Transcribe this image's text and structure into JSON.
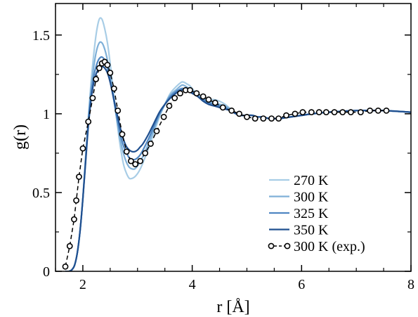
{
  "chart_data": {
    "type": "line",
    "xlabel": "r [Å]",
    "ylabel": "g(r)",
    "xlim": [
      1.5,
      8.0
    ],
    "ylim": [
      0,
      1.7
    ],
    "xticks": [
      2,
      4,
      6,
      8
    ],
    "xtick_labels": [
      "2",
      "4",
      "6",
      "8"
    ],
    "yticks": [
      0,
      0.5,
      1,
      1.5
    ],
    "ytick_labels": [
      "0",
      "0.5",
      "1",
      "1.5"
    ],
    "grid": false,
    "legend_position": "bottom-right",
    "series": [
      {
        "name": "270 K",
        "color": "#a8cde6",
        "style": "line",
        "x": [
          1.68,
          1.75,
          1.8,
          1.85,
          1.9,
          1.95,
          2.0,
          2.05,
          2.1,
          2.15,
          2.2,
          2.25,
          2.3,
          2.35,
          2.4,
          2.45,
          2.5,
          2.55,
          2.6,
          2.65,
          2.7,
          2.75,
          2.8,
          2.85,
          2.9,
          2.95,
          3.0,
          3.05,
          3.1,
          3.2,
          3.3,
          3.4,
          3.5,
          3.6,
          3.7,
          3.8,
          3.85,
          3.9,
          3.95,
          4.0,
          4.1,
          4.2,
          4.3,
          4.4,
          4.5,
          4.6,
          4.7,
          4.8,
          4.9,
          5.0,
          5.1,
          5.2,
          5.3,
          5.4,
          5.5,
          5.6,
          5.8,
          6.0,
          6.2,
          6.5,
          7.0,
          7.5,
          8.0
        ],
        "y": [
          0.0,
          0.0,
          0.01,
          0.04,
          0.12,
          0.26,
          0.46,
          0.72,
          0.98,
          1.2,
          1.38,
          1.52,
          1.6,
          1.6,
          1.54,
          1.45,
          1.32,
          1.17,
          1.02,
          0.88,
          0.76,
          0.67,
          0.62,
          0.59,
          0.59,
          0.6,
          0.62,
          0.65,
          0.69,
          0.78,
          0.88,
          0.98,
          1.06,
          1.13,
          1.17,
          1.2,
          1.2,
          1.19,
          1.18,
          1.16,
          1.12,
          1.1,
          1.09,
          1.09,
          1.08,
          1.06,
          1.03,
          1.0,
          0.99,
          0.99,
          0.99,
          0.98,
          0.98,
          0.97,
          0.97,
          0.97,
          0.98,
          0.99,
          1.0,
          1.01,
          1.02,
          1.02,
          1.01
        ]
      },
      {
        "name": "300 K",
        "color": "#7fb0d8",
        "style": "line",
        "x": [
          1.68,
          1.75,
          1.8,
          1.85,
          1.9,
          1.95,
          2.0,
          2.05,
          2.1,
          2.15,
          2.2,
          2.25,
          2.3,
          2.35,
          2.4,
          2.45,
          2.5,
          2.55,
          2.6,
          2.65,
          2.7,
          2.75,
          2.8,
          2.85,
          2.9,
          2.95,
          3.0,
          3.05,
          3.1,
          3.2,
          3.3,
          3.4,
          3.5,
          3.6,
          3.7,
          3.8,
          3.85,
          3.9,
          3.95,
          4.0,
          4.1,
          4.2,
          4.3,
          4.4,
          4.5,
          4.6,
          4.7,
          4.8,
          4.9,
          5.0,
          5.1,
          5.2,
          5.3,
          5.4,
          5.5,
          5.6,
          5.8,
          6.0,
          6.2,
          6.5,
          7.0,
          7.5,
          8.0
        ],
        "y": [
          0.0,
          0.0,
          0.01,
          0.04,
          0.12,
          0.26,
          0.46,
          0.72,
          0.96,
          1.16,
          1.3,
          1.4,
          1.45,
          1.45,
          1.41,
          1.34,
          1.24,
          1.13,
          1.01,
          0.9,
          0.81,
          0.74,
          0.69,
          0.66,
          0.65,
          0.65,
          0.67,
          0.7,
          0.73,
          0.81,
          0.9,
          0.99,
          1.06,
          1.12,
          1.15,
          1.18,
          1.18,
          1.17,
          1.16,
          1.15,
          1.12,
          1.1,
          1.08,
          1.07,
          1.06,
          1.05,
          1.03,
          1.0,
          0.99,
          0.99,
          0.99,
          0.98,
          0.98,
          0.97,
          0.97,
          0.97,
          0.98,
          0.99,
          1.0,
          1.01,
          1.02,
          1.02,
          1.01
        ]
      },
      {
        "name": "325 K",
        "color": "#4f86c2",
        "style": "line",
        "x": [
          1.68,
          1.75,
          1.8,
          1.85,
          1.9,
          1.95,
          2.0,
          2.05,
          2.1,
          2.15,
          2.2,
          2.25,
          2.3,
          2.35,
          2.4,
          2.45,
          2.5,
          2.55,
          2.6,
          2.65,
          2.7,
          2.75,
          2.8,
          2.85,
          2.9,
          2.95,
          3.0,
          3.05,
          3.1,
          3.2,
          3.3,
          3.4,
          3.5,
          3.6,
          3.7,
          3.8,
          3.85,
          3.9,
          3.95,
          4.0,
          4.1,
          4.2,
          4.3,
          4.4,
          4.5,
          4.6,
          4.7,
          4.8,
          4.9,
          5.0,
          5.1,
          5.2,
          5.3,
          5.4,
          5.5,
          5.6,
          5.8,
          6.0,
          6.2,
          6.5,
          7.0,
          7.5,
          8.0
        ],
        "y": [
          0.0,
          0.0,
          0.01,
          0.04,
          0.12,
          0.26,
          0.46,
          0.7,
          0.94,
          1.12,
          1.24,
          1.31,
          1.35,
          1.36,
          1.34,
          1.29,
          1.21,
          1.12,
          1.02,
          0.93,
          0.85,
          0.79,
          0.75,
          0.72,
          0.71,
          0.71,
          0.72,
          0.74,
          0.77,
          0.84,
          0.92,
          1.0,
          1.06,
          1.11,
          1.14,
          1.16,
          1.16,
          1.16,
          1.15,
          1.14,
          1.11,
          1.09,
          1.07,
          1.06,
          1.05,
          1.04,
          1.02,
          1.0,
          0.99,
          0.99,
          0.99,
          0.98,
          0.98,
          0.97,
          0.97,
          0.97,
          0.98,
          0.99,
          1.0,
          1.01,
          1.02,
          1.02,
          1.01
        ]
      },
      {
        "name": "350 K",
        "color": "#1f4f8f",
        "style": "line",
        "x": [
          1.68,
          1.75,
          1.8,
          1.85,
          1.9,
          1.95,
          2.0,
          2.05,
          2.1,
          2.15,
          2.2,
          2.25,
          2.3,
          2.35,
          2.4,
          2.45,
          2.5,
          2.55,
          2.6,
          2.65,
          2.7,
          2.75,
          2.8,
          2.85,
          2.9,
          2.95,
          3.0,
          3.05,
          3.1,
          3.2,
          3.3,
          3.4,
          3.5,
          3.6,
          3.7,
          3.8,
          3.85,
          3.9,
          3.95,
          4.0,
          4.1,
          4.2,
          4.3,
          4.4,
          4.5,
          4.6,
          4.7,
          4.8,
          4.9,
          5.0,
          5.1,
          5.2,
          5.3,
          5.4,
          5.5,
          5.6,
          5.8,
          6.0,
          6.2,
          6.5,
          7.0,
          7.5,
          8.0
        ],
        "y": [
          0.0,
          0.0,
          0.01,
          0.04,
          0.12,
          0.26,
          0.46,
          0.69,
          0.92,
          1.09,
          1.2,
          1.26,
          1.29,
          1.3,
          1.29,
          1.26,
          1.2,
          1.12,
          1.04,
          0.96,
          0.89,
          0.83,
          0.79,
          0.77,
          0.76,
          0.76,
          0.77,
          0.79,
          0.81,
          0.87,
          0.94,
          1.01,
          1.06,
          1.1,
          1.13,
          1.15,
          1.15,
          1.15,
          1.14,
          1.13,
          1.11,
          1.08,
          1.06,
          1.05,
          1.04,
          1.03,
          1.02,
          1.0,
          0.99,
          0.99,
          0.99,
          0.98,
          0.98,
          0.97,
          0.97,
          0.97,
          0.98,
          0.99,
          1.0,
          1.01,
          1.02,
          1.02,
          1.01
        ]
      },
      {
        "name": "300 K (exp.)",
        "color": "#000000",
        "style": "dashed-circles",
        "x": [
          1.68,
          1.76,
          1.84,
          1.88,
          1.93,
          2.0,
          2.1,
          2.18,
          2.24,
          2.3,
          2.35,
          2.4,
          2.45,
          2.5,
          2.57,
          2.64,
          2.72,
          2.8,
          2.88,
          2.96,
          3.05,
          3.14,
          3.24,
          3.35,
          3.48,
          3.58,
          3.68,
          3.78,
          3.88,
          3.96,
          4.08,
          4.2,
          4.3,
          4.42,
          4.56,
          4.72,
          4.86,
          5.0,
          5.15,
          5.3,
          5.45,
          5.58,
          5.72,
          5.88,
          6.02,
          6.18,
          6.32,
          6.45,
          6.6,
          6.75,
          6.9,
          7.08,
          7.25,
          7.4,
          7.55
        ],
        "y": [
          0.03,
          0.16,
          0.33,
          0.45,
          0.6,
          0.78,
          0.95,
          1.1,
          1.22,
          1.29,
          1.32,
          1.33,
          1.31,
          1.26,
          1.16,
          1.02,
          0.87,
          0.76,
          0.7,
          0.68,
          0.7,
          0.75,
          0.81,
          0.89,
          0.98,
          1.05,
          1.1,
          1.13,
          1.15,
          1.15,
          1.13,
          1.11,
          1.09,
          1.07,
          1.04,
          1.02,
          1.0,
          0.98,
          0.97,
          0.97,
          0.97,
          0.97,
          0.99,
          1.0,
          1.01,
          1.01,
          1.01,
          1.01,
          1.01,
          1.01,
          1.01,
          1.01,
          1.02,
          1.02,
          1.02
        ]
      }
    ]
  }
}
